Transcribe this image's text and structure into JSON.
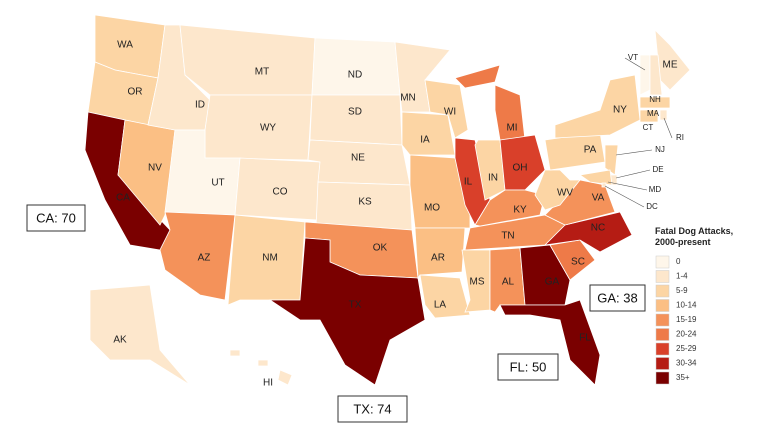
{
  "map": {
    "legend": {
      "title_line1": "Fatal Dog Attacks,",
      "title_line2": "2000-present",
      "bins": [
        {
          "label": "0",
          "color": "#fef6ea"
        },
        {
          "label": "1-4",
          "color": "#fde7cc"
        },
        {
          "label": "5-9",
          "color": "#fcd5a4"
        },
        {
          "label": "10-14",
          "color": "#fbbf84"
        },
        {
          "label": "15-19",
          "color": "#f4925a"
        },
        {
          "label": "20-24",
          "color": "#ee7a48"
        },
        {
          "label": "25-29",
          "color": "#d9402a"
        },
        {
          "label": "30-34",
          "color": "#b51c14"
        },
        {
          "label": "35+",
          "color": "#7a0000"
        }
      ]
    },
    "states": [
      {
        "label": "WA",
        "bin": 2
      },
      {
        "label": "OR",
        "bin": 2
      },
      {
        "label": "CA",
        "bin": 8
      },
      {
        "label": "NV",
        "bin": 3
      },
      {
        "label": "ID",
        "bin": 1
      },
      {
        "label": "MT",
        "bin": 1
      },
      {
        "label": "WY",
        "bin": 1
      },
      {
        "label": "UT",
        "bin": 0
      },
      {
        "label": "CO",
        "bin": 1
      },
      {
        "label": "AZ",
        "bin": 4
      },
      {
        "label": "NM",
        "bin": 2
      },
      {
        "label": "ND",
        "bin": 0
      },
      {
        "label": "SD",
        "bin": 1
      },
      {
        "label": "NE",
        "bin": 1
      },
      {
        "label": "KS",
        "bin": 1
      },
      {
        "label": "OK",
        "bin": 4
      },
      {
        "label": "TX",
        "bin": 8
      },
      {
        "label": "MN",
        "bin": 1
      },
      {
        "label": "IA",
        "bin": 2
      },
      {
        "label": "MO",
        "bin": 3
      },
      {
        "label": "AR",
        "bin": 3
      },
      {
        "label": "LA",
        "bin": 2
      },
      {
        "label": "WI",
        "bin": 2
      },
      {
        "label": "IL",
        "bin": 6
      },
      {
        "label": "MI",
        "bin": 5
      },
      {
        "label": "IN",
        "bin": 2
      },
      {
        "label": "OH",
        "bin": 6
      },
      {
        "label": "KY",
        "bin": 4
      },
      {
        "label": "TN",
        "bin": 4
      },
      {
        "label": "MS",
        "bin": 2
      },
      {
        "label": "AL",
        "bin": 4
      },
      {
        "label": "GA",
        "bin": 8
      },
      {
        "label": "FL",
        "bin": 8
      },
      {
        "label": "SC",
        "bin": 5
      },
      {
        "label": "NC",
        "bin": 7
      },
      {
        "label": "VA",
        "bin": 4
      },
      {
        "label": "WV",
        "bin": 2
      },
      {
        "label": "PA",
        "bin": 2
      },
      {
        "label": "NY",
        "bin": 2
      },
      {
        "label": "ME",
        "bin": 1
      },
      {
        "label": "VT",
        "bin": 0
      },
      {
        "label": "NH",
        "bin": 1
      },
      {
        "label": "MA",
        "bin": 2
      },
      {
        "label": "RI",
        "bin": 1
      },
      {
        "label": "CT",
        "bin": 2
      },
      {
        "label": "NJ",
        "bin": 2
      },
      {
        "label": "DE",
        "bin": 1
      },
      {
        "label": "MD",
        "bin": 2
      },
      {
        "label": "DC",
        "bin": 1
      },
      {
        "label": "AK",
        "bin": 1
      },
      {
        "label": "HI",
        "bin": 1
      }
    ],
    "callouts": [
      {
        "text": "CA: 70"
      },
      {
        "text": "TX: 74"
      },
      {
        "text": "FL: 50"
      },
      {
        "text": "GA: 38"
      }
    ]
  }
}
